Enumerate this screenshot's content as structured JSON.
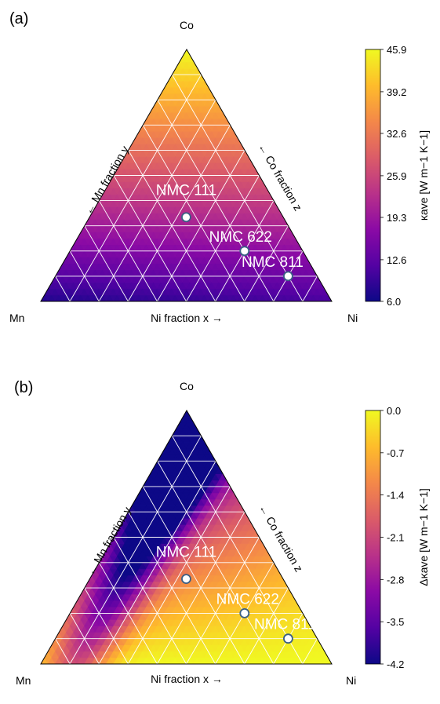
{
  "panel_a": {
    "panel_label": "(a)",
    "vertex_top": "Co",
    "vertex_left": "Mn",
    "vertex_right": "Ni",
    "axis_left": "← Mn fraction y",
    "axis_right": "← Co fraction z",
    "axis_bottom": "Ni fraction x →"
  },
  "panel_b": {
    "panel_label": "(b)",
    "vertex_top": "Co",
    "vertex_left": "Mn",
    "vertex_right": "Ni",
    "axis_left": "← Mn fraction y",
    "axis_right": "← Co fraction z",
    "axis_bottom": "Ni fraction x →"
  },
  "chart_data": [
    {
      "type": "heatmap",
      "subtype": "ternary",
      "panel": "(a)",
      "vertices": {
        "top": "Co",
        "left": "Mn",
        "right": "Ni"
      },
      "axis_labels": {
        "left": "← Mn fraction y",
        "right": "← Co fraction z",
        "bottom": "Ni fraction x →"
      },
      "grid": true,
      "grid_divisions": 10,
      "colormap": "plasma",
      "colorbar": {
        "label": "κave [W m−1 K−1]",
        "min": 6.0,
        "max": 45.9,
        "ticks": [
          "6.0",
          "12.6",
          "19.3",
          "25.9",
          "32.6",
          "39.2",
          "45.9"
        ],
        "tick_values": [
          6.0,
          12.6,
          19.3,
          25.9,
          32.6,
          39.2,
          45.9
        ]
      },
      "field_description_values": {
        "co_corner": 45.9,
        "mn_ni_edge": 6.0
      },
      "points": [
        {
          "label": "NMC 111",
          "x": 0.333,
          "y": 0.333,
          "z": 0.333
        },
        {
          "label": "NMC 622",
          "x": 0.6,
          "y": 0.2,
          "z": 0.2
        },
        {
          "label": "NMC 811",
          "x": 0.8,
          "y": 0.1,
          "z": 0.1
        }
      ]
    },
    {
      "type": "heatmap",
      "subtype": "ternary",
      "panel": "(b)",
      "vertices": {
        "top": "Co",
        "left": "Mn",
        "right": "Ni"
      },
      "axis_labels": {
        "left": "← Mn fraction y",
        "right": "← Co fraction z",
        "bottom": "Ni fraction x →"
      },
      "grid": true,
      "grid_divisions": 10,
      "colormap": "plasma",
      "colorbar": {
        "label": "Δκave [W m−1 K−1]",
        "min": -4.2,
        "max": 0.0,
        "ticks": [
          "0.0",
          "-0.7",
          "-1.4",
          "-2.1",
          "-2.8",
          "-3.5",
          "-4.2"
        ],
        "tick_values": [
          0.0,
          -0.7,
          -1.4,
          -2.1,
          -2.8,
          -3.5,
          -4.2
        ]
      },
      "points": [
        {
          "label": "NMC 111",
          "x": 0.333,
          "y": 0.333,
          "z": 0.333
        },
        {
          "label": "NMC 622",
          "x": 0.6,
          "y": 0.2,
          "z": 0.2
        },
        {
          "label": "NMC 811",
          "x": 0.8,
          "y": 0.1,
          "z": 0.1
        }
      ]
    }
  ]
}
